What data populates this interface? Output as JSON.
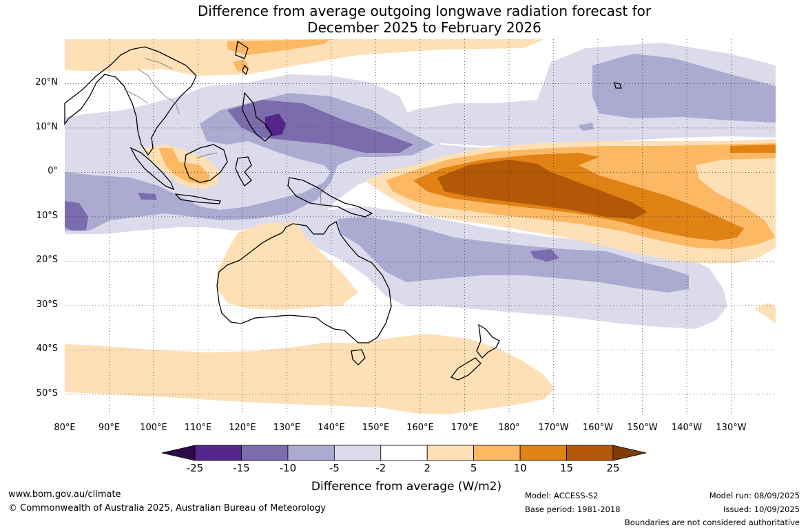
{
  "map": {
    "title_line1": "Difference from average outgoing longwave radiation forecast for",
    "title_line2": "December 2025 to February 2026",
    "lat_labels": [
      "20°N",
      "10°N",
      "0°",
      "10°S",
      "20°S",
      "30°S",
      "40°S",
      "50°S"
    ],
    "lon_labels": [
      "80°E",
      "90°E",
      "100°E",
      "110°E",
      "120°E",
      "130°E",
      "140°E",
      "150°E",
      "160°E",
      "170°E",
      "180°",
      "170°W",
      "160°W",
      "150°W",
      "140°W",
      "130°W"
    ],
    "extent": {
      "lon_min": 80,
      "lon_max": 240,
      "lat_min": -55,
      "lat_max": 30
    },
    "background_color": "#ffffff",
    "coastline_color": "#000000",
    "border_color": "#888888"
  },
  "colorbar": {
    "title": "Difference from average (W/m2)",
    "tick_labels": [
      "-25",
      "-15",
      "-10",
      "-5",
      "-2",
      "2",
      "5",
      "10",
      "15",
      "25"
    ],
    "colors": [
      "#2c0a4a",
      "#54258a",
      "#7a6cad",
      "#adaad2",
      "#dbdbec",
      "#ffffff",
      "#fee0b6",
      "#fdb863",
      "#e08214",
      "#b35806",
      "#7f3b08"
    ],
    "extend": "both"
  },
  "footer": {
    "website": "www.bom.gov.au/climate",
    "copyright": "© Commonwealth of Australia 2025, Australian Bureau of Meteorology",
    "model": "Model: ACCESS-S2",
    "base_period": "Base period: 1981-2018",
    "model_run": "Model run: 08/09/2025",
    "issued": "Issued: 10/09/2025",
    "disclaimer": "Boundaries are not considered authoritative"
  }
}
